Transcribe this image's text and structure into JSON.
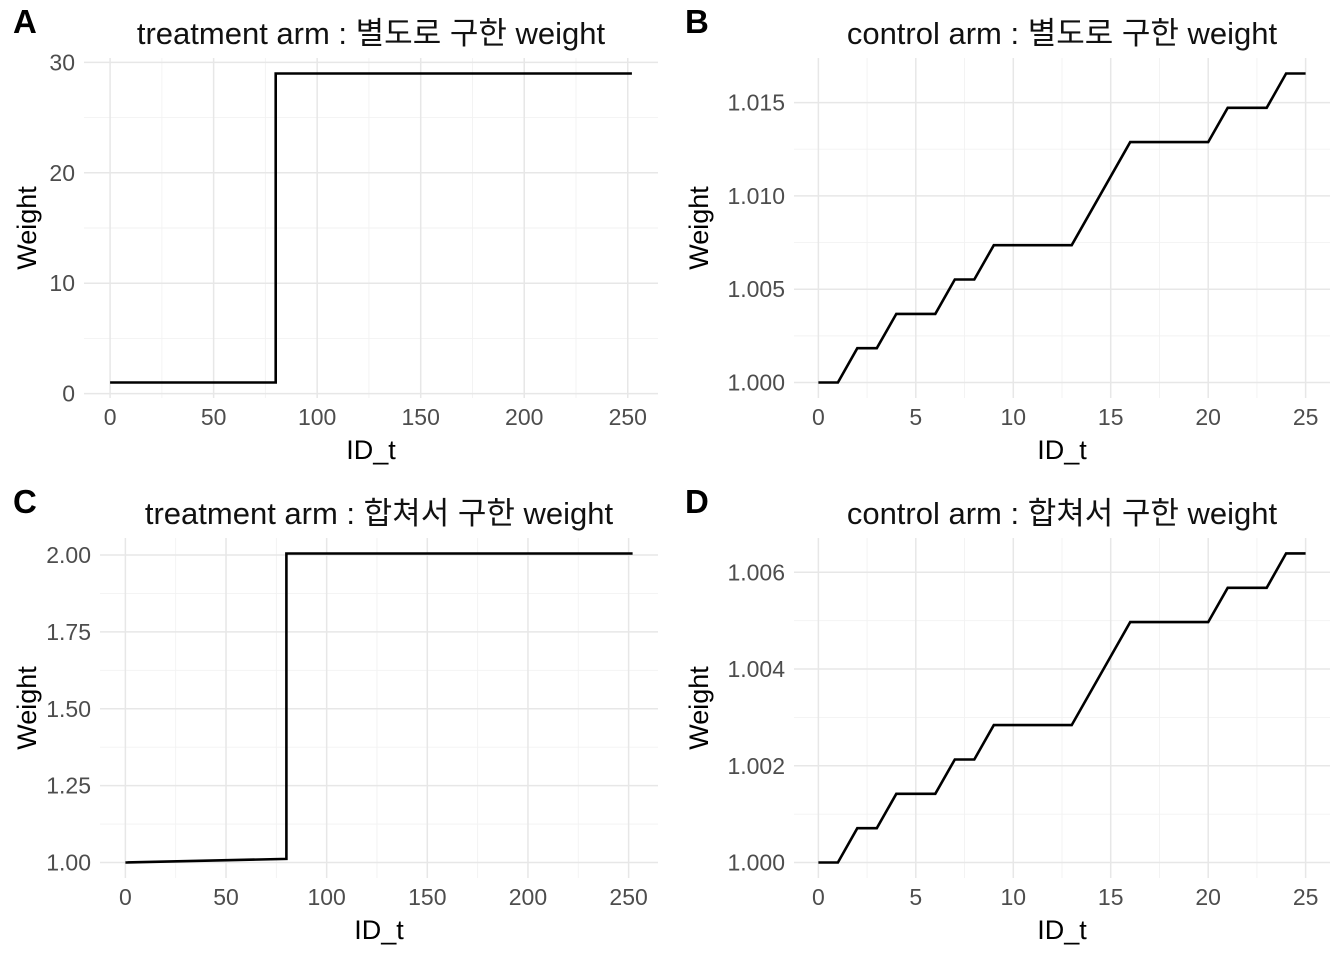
{
  "style": {
    "background": "#ffffff",
    "line_color": "#000000",
    "grid_major_color": "#e7e7e7",
    "grid_minor_color": "#f2f2f2",
    "tick_label_color": "#4d4d4d",
    "axis_title_color": "#000000",
    "title_color": "#111111",
    "tag_color": "#000000"
  },
  "chart_data": [
    {
      "type": "line",
      "tag": "A",
      "title": "treatment arm : 별도로 구한 weight",
      "xlabel": "ID_t",
      "ylabel": "Weight",
      "xlim": [
        -12.6,
        264.6
      ],
      "ylim": [
        -0.4,
        30.4
      ],
      "x_ticks": [
        {
          "v": 0,
          "label": "0"
        },
        {
          "v": 50,
          "label": "50"
        },
        {
          "v": 100,
          "label": "100"
        },
        {
          "v": 150,
          "label": "150"
        },
        {
          "v": 200,
          "label": "200"
        },
        {
          "v": 250,
          "label": "250"
        }
      ],
      "y_ticks": [
        {
          "v": 0,
          "label": "0"
        },
        {
          "v": 10,
          "label": "10"
        },
        {
          "v": 20,
          "label": "20"
        },
        {
          "v": 30,
          "label": "30"
        }
      ],
      "x_minor": [
        25,
        75,
        125,
        175,
        225
      ],
      "y_minor": [
        5,
        15,
        25
      ],
      "points": [
        [
          0,
          1
        ],
        [
          80,
          1
        ],
        [
          80,
          29
        ],
        [
          252,
          29
        ]
      ],
      "grid": "on",
      "legend": "none"
    },
    {
      "type": "line",
      "tag": "B",
      "title": "control arm : 별도로 구한 weight",
      "xlabel": "ID_t",
      "ylabel": "Weight",
      "xlim": [
        -1.25,
        26.25
      ],
      "ylim": [
        0.999172,
        1.017388
      ],
      "x_ticks": [
        {
          "v": 0,
          "label": "0"
        },
        {
          "v": 5,
          "label": "5"
        },
        {
          "v": 10,
          "label": "10"
        },
        {
          "v": 15,
          "label": "15"
        },
        {
          "v": 20,
          "label": "20"
        },
        {
          "v": 25,
          "label": "25"
        }
      ],
      "y_ticks": [
        {
          "v": 1.0,
          "label": "1.000"
        },
        {
          "v": 1.005,
          "label": "1.005"
        },
        {
          "v": 1.01,
          "label": "1.010"
        },
        {
          "v": 1.015,
          "label": "1.015"
        }
      ],
      "x_minor": [
        2.5,
        7.5,
        12.5,
        17.5,
        22.5
      ],
      "y_minor": [
        1.0025,
        1.0075,
        1.0125
      ],
      "points": [
        [
          0,
          1.0
        ],
        [
          1,
          1.0
        ],
        [
          2,
          1.00184
        ],
        [
          3,
          1.00184
        ],
        [
          4,
          1.00368
        ],
        [
          6,
          1.00368
        ],
        [
          7,
          1.00552
        ],
        [
          8,
          1.00552
        ],
        [
          9,
          1.00736
        ],
        [
          13,
          1.00736
        ],
        [
          16,
          1.01288
        ],
        [
          20,
          1.01288
        ],
        [
          21,
          1.01472
        ],
        [
          23,
          1.01472
        ],
        [
          24,
          1.01656
        ],
        [
          25,
          1.01656
        ]
      ],
      "grid": "on",
      "legend": "none"
    },
    {
      "type": "line",
      "tag": "C",
      "title": "treatment arm : 합쳐서 구한 weight",
      "xlabel": "ID_t",
      "ylabel": "Weight",
      "xlim": [
        -12.6,
        264.6
      ],
      "ylim": [
        0.94975,
        2.055275
      ],
      "x_ticks": [
        {
          "v": 0,
          "label": "0"
        },
        {
          "v": 50,
          "label": "50"
        },
        {
          "v": 100,
          "label": "100"
        },
        {
          "v": 150,
          "label": "150"
        },
        {
          "v": 200,
          "label": "200"
        },
        {
          "v": 250,
          "label": "250"
        }
      ],
      "y_ticks": [
        {
          "v": 1.0,
          "label": "1.00"
        },
        {
          "v": 1.25,
          "label": "1.25"
        },
        {
          "v": 1.5,
          "label": "1.50"
        },
        {
          "v": 1.75,
          "label": "1.75"
        },
        {
          "v": 2.0,
          "label": "2.00"
        }
      ],
      "x_minor": [
        25,
        75,
        125,
        175,
        225
      ],
      "y_minor": [
        1.125,
        1.375,
        1.625,
        1.875
      ],
      "points": [
        [
          0,
          1.0
        ],
        [
          80,
          1.012
        ],
        [
          80,
          2.005
        ],
        [
          252,
          2.005
        ]
      ],
      "grid": "on",
      "legend": "none"
    },
    {
      "type": "line",
      "tag": "D",
      "title": "control arm : 합쳐서 구한 weight",
      "xlabel": "ID_t",
      "ylabel": "Weight",
      "xlim": [
        -1.25,
        26.25
      ],
      "ylim": [
        0.99968,
        1.006709
      ],
      "x_ticks": [
        {
          "v": 0,
          "label": "0"
        },
        {
          "v": 5,
          "label": "5"
        },
        {
          "v": 10,
          "label": "10"
        },
        {
          "v": 15,
          "label": "15"
        },
        {
          "v": 20,
          "label": "20"
        },
        {
          "v": 25,
          "label": "25"
        }
      ],
      "y_ticks": [
        {
          "v": 1.0,
          "label": "1.000"
        },
        {
          "v": 1.002,
          "label": "1.002"
        },
        {
          "v": 1.004,
          "label": "1.004"
        },
        {
          "v": 1.006,
          "label": "1.006"
        }
      ],
      "x_minor": [
        2.5,
        7.5,
        12.5,
        17.5,
        22.5
      ],
      "y_minor": [
        1.001,
        1.003,
        1.005
      ],
      "points": [
        [
          0,
          1.0
        ],
        [
          1,
          1.0
        ],
        [
          2,
          1.00071
        ],
        [
          3,
          1.00071
        ],
        [
          4,
          1.00142
        ],
        [
          6,
          1.00142
        ],
        [
          7,
          1.00213
        ],
        [
          8,
          1.00213
        ],
        [
          9,
          1.00284
        ],
        [
          13,
          1.00284
        ],
        [
          16,
          1.00497
        ],
        [
          20,
          1.00497
        ],
        [
          21,
          1.00568
        ],
        [
          23,
          1.00568
        ],
        [
          24,
          1.00639
        ],
        [
          25,
          1.00639
        ]
      ],
      "grid": "on",
      "legend": "none"
    }
  ]
}
